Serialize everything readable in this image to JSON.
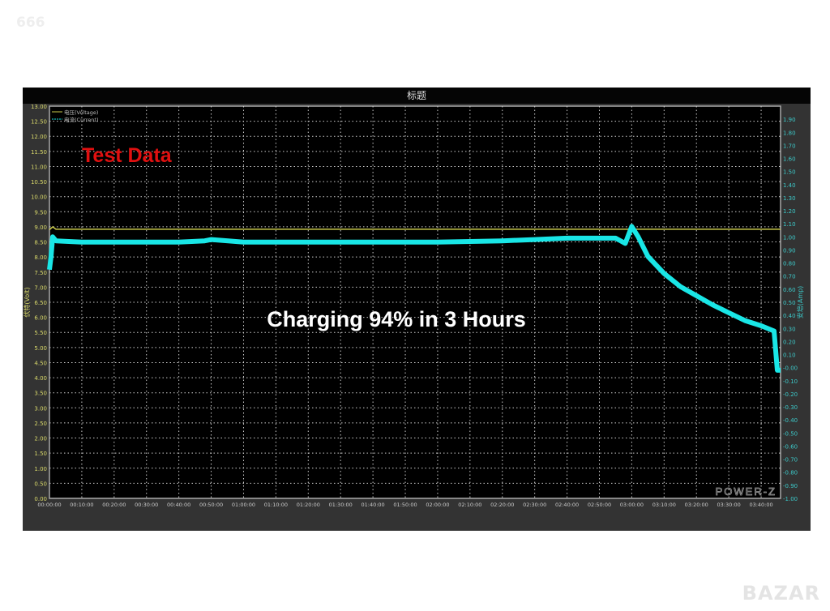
{
  "watermark_top": "666",
  "watermark_bottom": "BAZAR",
  "chart_data": {
    "type": "line",
    "title": "标题",
    "ylabel": "伏特(Volt)",
    "y2label": "安培(Amp)",
    "ylim": [
      0,
      13
    ],
    "y2lim": [
      -1,
      2
    ],
    "xlim_minutes": [
      0,
      226
    ],
    "grid": true,
    "legend_placement": "top-left",
    "x_ticks": [
      "00:00:00",
      "00:10:00",
      "00:20:00",
      "00:30:00",
      "00:40:00",
      "00:50:00",
      "01:00:00",
      "01:10:00",
      "01:20:00",
      "01:30:00",
      "01:40:00",
      "01:50:00",
      "02:00:00",
      "02:10:00",
      "02:20:00",
      "02:30:00",
      "02:40:00",
      "02:50:00",
      "03:00:00",
      "03:10:00",
      "03:20:00",
      "03:30:00",
      "03:40:00"
    ],
    "y_ticks": [
      "0.00",
      "0.50",
      "1.00",
      "1.50",
      "2.00",
      "2.50",
      "3.00",
      "3.50",
      "4.00",
      "4.50",
      "5.00",
      "5.50",
      "6.00",
      "6.50",
      "7.00",
      "7.50",
      "8.00",
      "8.50",
      "9.00",
      "9.50",
      "10.00",
      "10.50",
      "11.00",
      "11.50",
      "12.00",
      "12.50",
      "13.00"
    ],
    "y2_ticks": [
      "-1.00",
      "-0.90",
      "-0.80",
      "-0.70",
      "-0.60",
      "-0.50",
      "-0.40",
      "-0.30",
      "-0.20",
      "-0.10",
      "-0.00",
      "0.10",
      "0.20",
      "0.30",
      "0.40",
      "0.50",
      "0.60",
      "0.70",
      "0.80",
      "0.90",
      "1.00",
      "1.10",
      "1.20",
      "1.30",
      "1.40",
      "1.50",
      "1.60",
      "1.70",
      "1.80",
      "1.90"
    ],
    "series": [
      {
        "name": "电压(Voltage)",
        "axis": "left",
        "color": "#c8c84a",
        "x": [
          0,
          1,
          2,
          50,
          100,
          150,
          180,
          200,
          226
        ],
        "y": [
          8.9,
          9.0,
          8.92,
          8.92,
          8.92,
          8.92,
          8.92,
          8.92,
          8.92
        ]
      },
      {
        "name": "电流(Current)",
        "axis": "right",
        "color": "#19e6e6",
        "x": [
          0,
          0.5,
          1,
          2,
          10,
          20,
          30,
          40,
          48,
          50,
          60,
          80,
          100,
          120,
          140,
          150,
          160,
          170,
          175,
          178,
          180,
          182,
          185,
          190,
          195,
          200,
          205,
          210,
          215,
          220,
          224,
          225,
          226
        ],
        "y": [
          0.75,
          0.85,
          1.0,
          0.97,
          0.96,
          0.96,
          0.96,
          0.96,
          0.97,
          0.98,
          0.96,
          0.96,
          0.96,
          0.96,
          0.97,
          0.98,
          0.99,
          0.99,
          0.99,
          0.95,
          1.08,
          1.0,
          0.85,
          0.72,
          0.62,
          0.55,
          0.48,
          0.42,
          0.36,
          0.32,
          0.28,
          -0.02,
          -0.02
        ]
      }
    ]
  },
  "annotations": {
    "test_data": "Test Data",
    "headline": "Charging 94% in 3 Hours",
    "logo": "POWER-Z"
  }
}
